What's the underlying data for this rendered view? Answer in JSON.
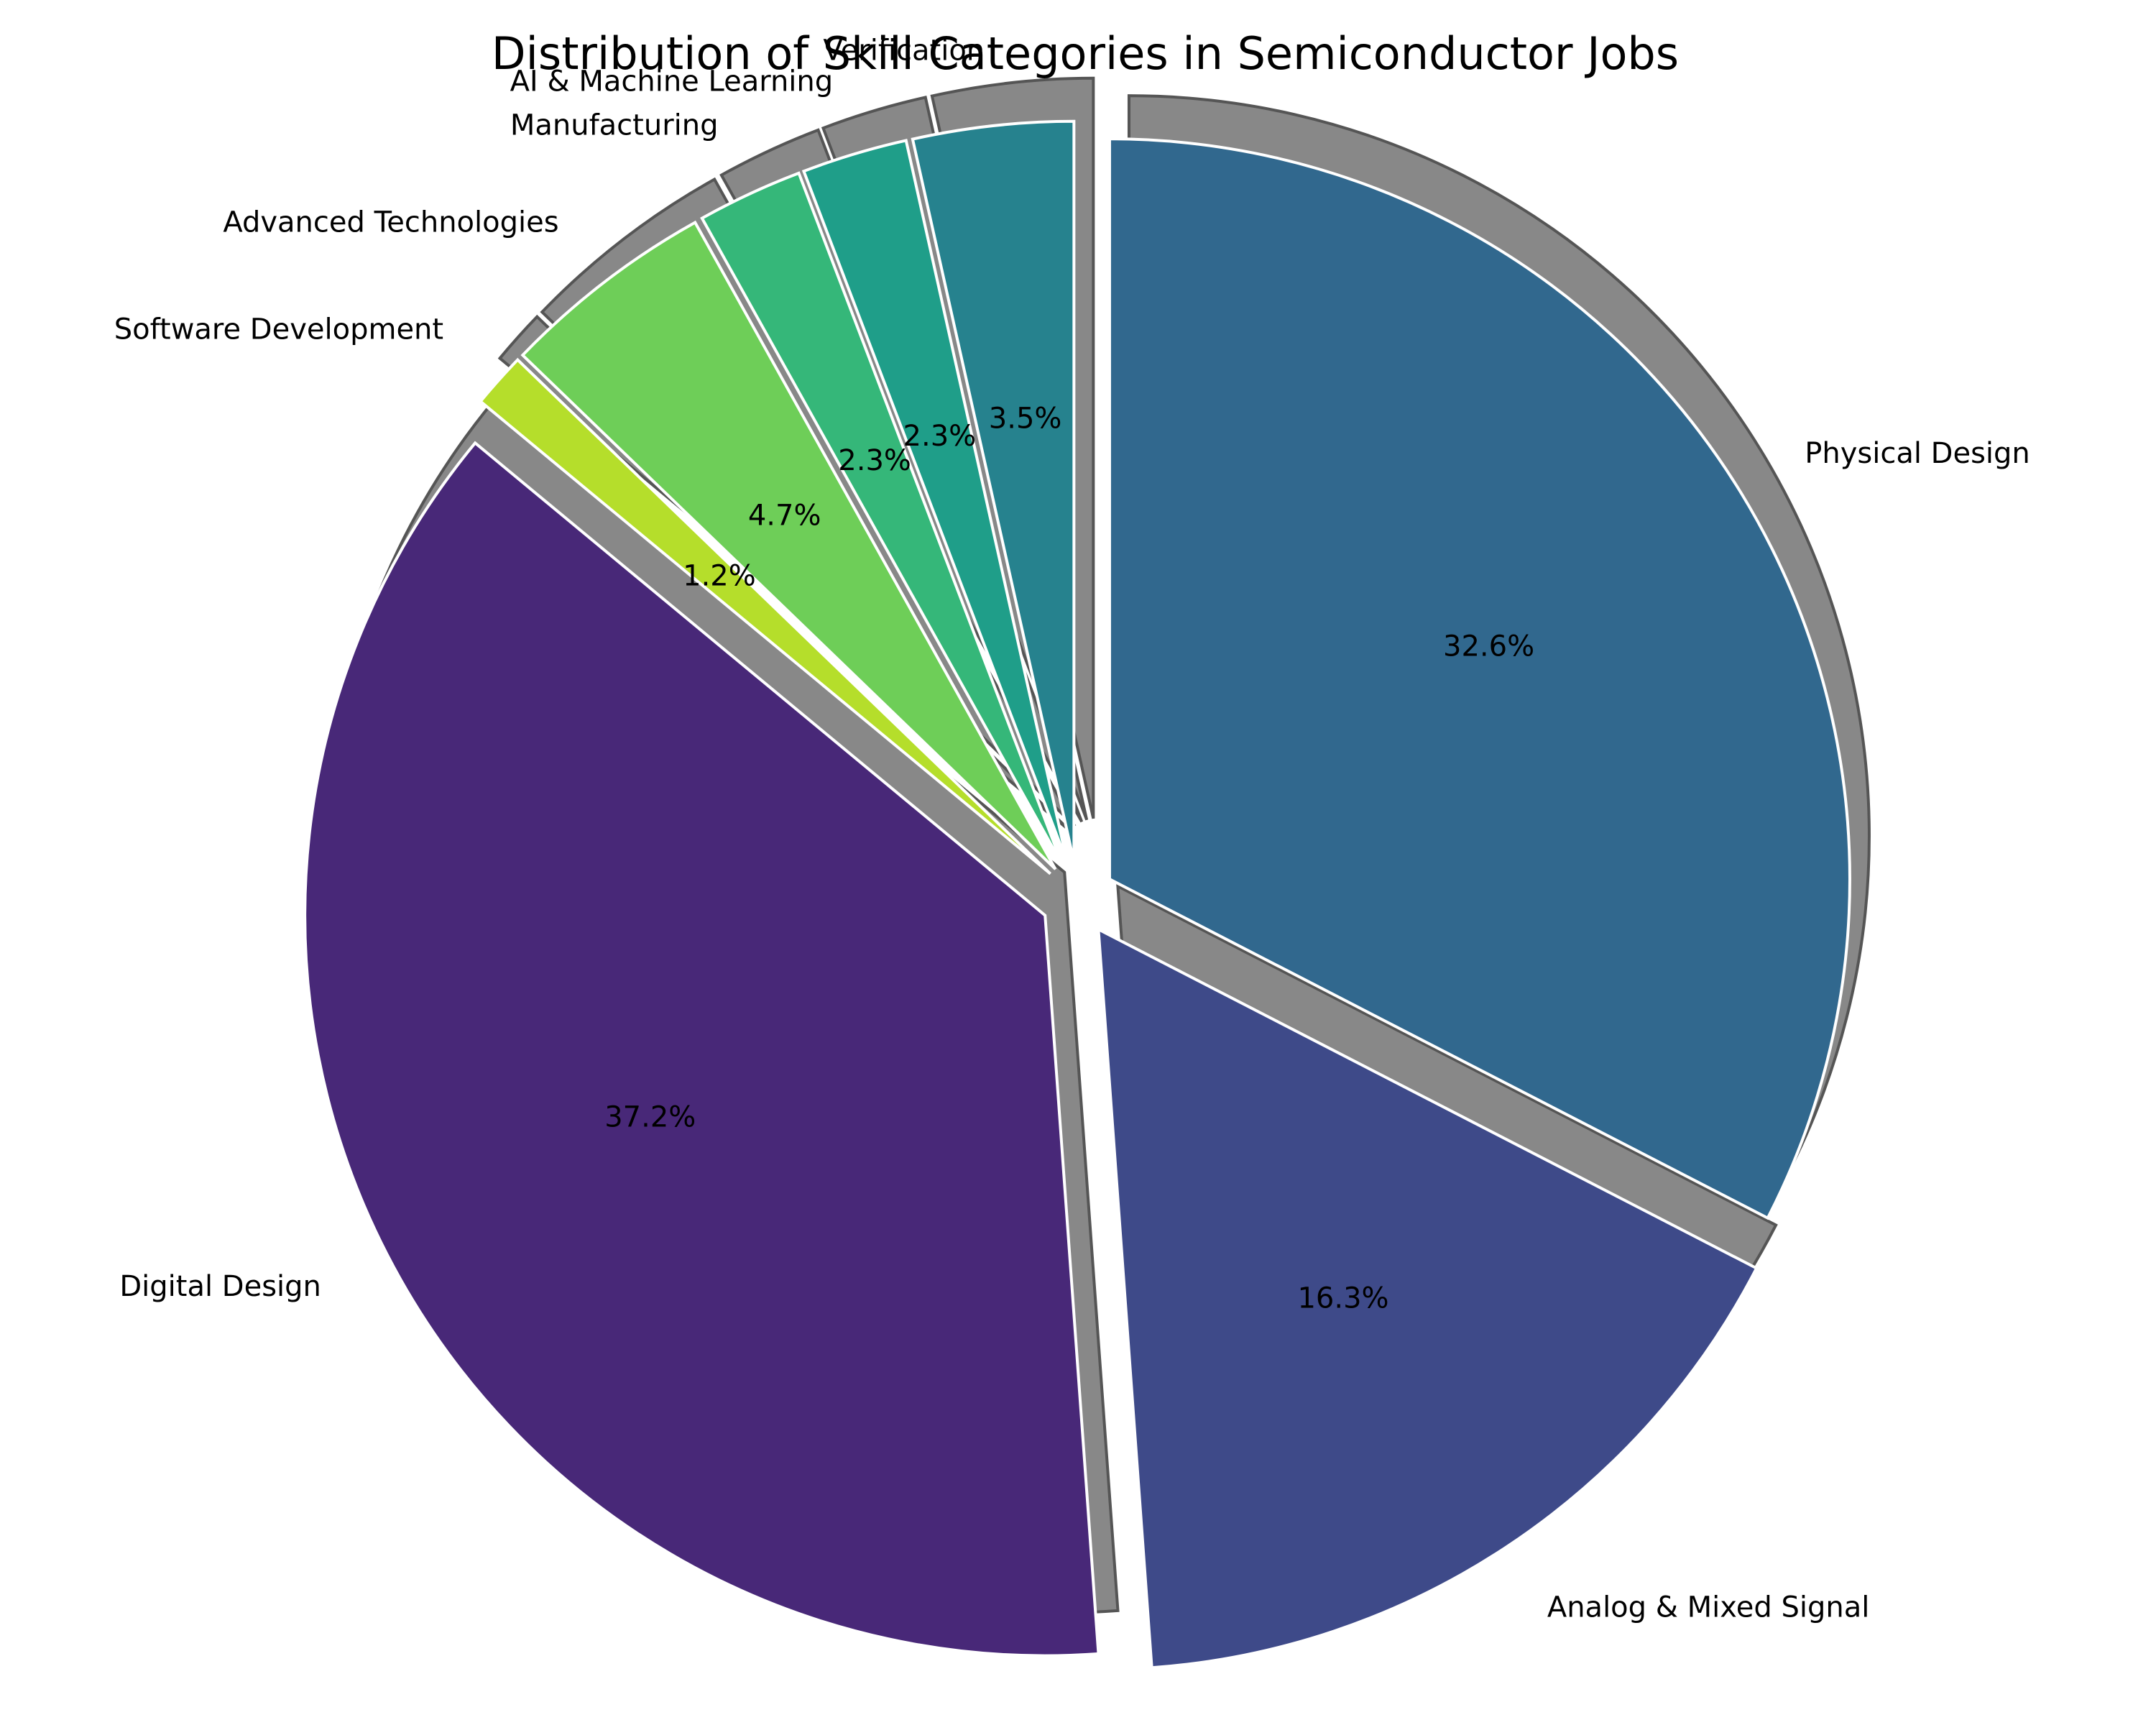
{
  "chart_data": {
    "type": "pie",
    "title": "Distribution of Skill Categories in Semiconductor Jobs",
    "start_angle_deg": 90,
    "direction": "clockwise",
    "shadow": true,
    "slices": [
      {
        "label": "Physical Design",
        "value": 32.6,
        "pct_label": "32.6%",
        "color": "#31688e",
        "explode": 0.05
      },
      {
        "label": "Analog & Mixed Signal",
        "value": 16.3,
        "pct_label": "16.3%",
        "color": "#3e4a89",
        "explode": 0.05
      },
      {
        "label": "Digital Design",
        "value": 37.2,
        "pct_label": "37.2%",
        "color": "#482878",
        "explode": 0.05
      },
      {
        "label": "Software Development",
        "value": 1.2,
        "pct_label": "1.2%",
        "color": "#b5de2b",
        "explode": 0.05
      },
      {
        "label": "Advanced Technologies",
        "value": 4.7,
        "pct_label": "4.7%",
        "color": "#6ece58",
        "explode": 0.05
      },
      {
        "label": "Manufacturing",
        "value": 2.3,
        "pct_label": "2.3%",
        "color": "#35b779",
        "explode": 0.05
      },
      {
        "label": "AI & Machine Learning",
        "value": 2.3,
        "pct_label": "2.3%",
        "color": "#1f9e89",
        "explode": 0.05
      },
      {
        "label": "Verification",
        "value": 3.5,
        "pct_label": "3.5%",
        "color": "#26828e",
        "explode": 0.05
      }
    ]
  }
}
